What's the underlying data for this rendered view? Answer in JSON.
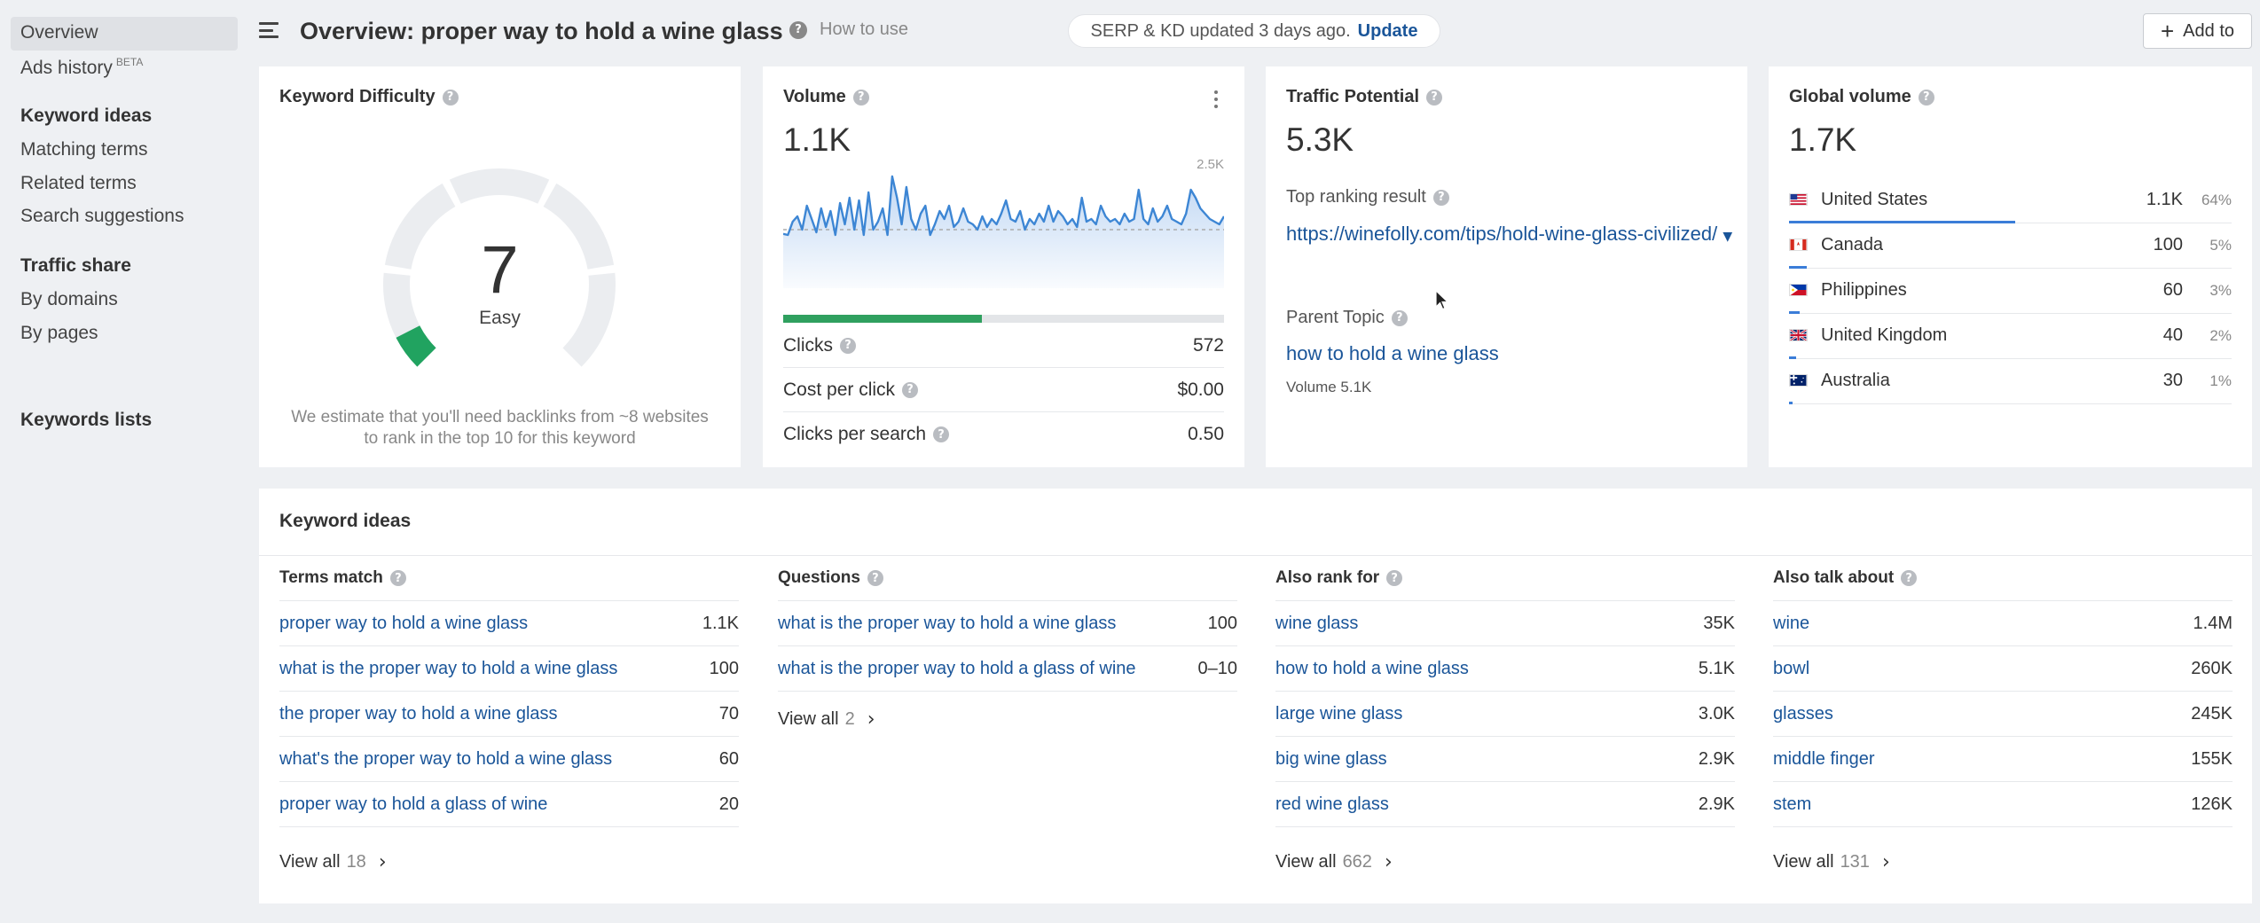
{
  "sidebar": {
    "overview": "Overview",
    "ads_history": "Ads history",
    "ads_badge": "BETA",
    "keyword_ideas_header": "Keyword ideas",
    "matching_terms": "Matching terms",
    "related_terms": "Related terms",
    "search_suggestions": "Search suggestions",
    "traffic_share_header": "Traffic share",
    "by_domains": "By domains",
    "by_pages": "By pages",
    "keywords_lists": "Keywords lists"
  },
  "header": {
    "title": "Overview: proper way to hold a wine glass",
    "how_to_use": "How to use",
    "serp_status": "SERP & KD updated 3 days ago.",
    "update_link": "Update",
    "add_to": "Add to"
  },
  "kd": {
    "title": "Keyword Difficulty",
    "value": "7",
    "label": "Easy",
    "score": 7,
    "fill_color": "#21a360",
    "description": "We estimate that you'll need backlinks from ~8 websites to rank in the top 10 for this keyword"
  },
  "volume": {
    "title": "Volume",
    "value": "1.1K",
    "chart_max_label": "2.5K",
    "clicks_fraction": 0.45,
    "clicks_label": "Clicks",
    "clicks_value": "572",
    "cpc_label": "Cost per click",
    "cpc_value": "$0.00",
    "cps_label": "Clicks per search",
    "cps_value": "0.50"
  },
  "chart_data": {
    "type": "area",
    "title": "",
    "ylim": [
      0,
      2500
    ],
    "series": [
      {
        "values": [
          1020,
          1000,
          1250,
          1350,
          1100,
          1550,
          1300,
          1050,
          1500,
          1150,
          1450,
          1000,
          1600,
          1200,
          1700,
          1100,
          1650,
          1000,
          1800,
          1100,
          1250,
          1500,
          1000,
          2100,
          1700,
          1200,
          1900,
          1300,
          1100,
          1400,
          1550,
          1000,
          1200,
          1450,
          1300,
          1550,
          1150,
          1250,
          1500,
          1250,
          1200,
          1100,
          1350,
          1150,
          1300,
          1200,
          1400,
          1650,
          1300,
          1250,
          1450,
          1100,
          1300,
          1200,
          1400,
          1250,
          1550,
          1250,
          1450,
          1350,
          1200,
          1300,
          1150,
          1700,
          1250,
          1300,
          1200,
          1550,
          1350,
          1250,
          1300,
          1200,
          1400,
          1250,
          1300,
          1850,
          1300,
          1200,
          1500,
          1250,
          1350,
          1550,
          1300,
          1250,
          1200,
          1400,
          1850,
          1700,
          1500,
          1400,
          1300,
          1250,
          1200,
          1350
        ]
      }
    ],
    "average": 1100
  },
  "traffic_potential": {
    "title": "Traffic Potential",
    "value": "5.3K",
    "top_ranking_label": "Top ranking result",
    "top_url": "https://winefolly.com/tips/hold-wine-glass-civilized/",
    "parent_topic_label": "Parent Topic",
    "parent_topic": "how to hold a wine glass",
    "parent_volume": "Volume 5.1K"
  },
  "global_volume": {
    "title": "Global volume",
    "value": "1.7K",
    "countries": [
      {
        "name": "United States",
        "value": "1.1K",
        "pct": "64%",
        "share": 0.64
      },
      {
        "name": "Canada",
        "value": "100",
        "pct": "5%",
        "share": 0.05
      },
      {
        "name": "Philippines",
        "value": "60",
        "pct": "3%",
        "share": 0.03
      },
      {
        "name": "United Kingdom",
        "value": "40",
        "pct": "2%",
        "share": 0.02
      },
      {
        "name": "Australia",
        "value": "30",
        "pct": "1%",
        "share": 0.01
      }
    ]
  },
  "keyword_ideas": {
    "title": "Keyword ideas",
    "view_all": "View all",
    "columns": [
      {
        "title": "Terms match",
        "rows": [
          {
            "kw": "proper way to hold a wine glass",
            "vol": "1.1K"
          },
          {
            "kw": "what is the proper way to hold a wine glass",
            "vol": "100"
          },
          {
            "kw": "the proper way to hold a wine glass",
            "vol": "70"
          },
          {
            "kw": "what's the proper way to hold a wine glass",
            "vol": "60"
          },
          {
            "kw": "proper way to hold a glass of wine",
            "vol": "20"
          }
        ],
        "view_all_count": "18"
      },
      {
        "title": "Questions",
        "rows": [
          {
            "kw": "what is the proper way to hold a wine glass",
            "vol": "100"
          },
          {
            "kw": "what is the proper way to hold a glass of wine",
            "vol": "0–10"
          }
        ],
        "view_all_count": "2"
      },
      {
        "title": "Also rank for",
        "rows": [
          {
            "kw": "wine glass",
            "vol": "35K"
          },
          {
            "kw": "how to hold a wine glass",
            "vol": "5.1K"
          },
          {
            "kw": "large wine glass",
            "vol": "3.0K"
          },
          {
            "kw": "big wine glass",
            "vol": "2.9K"
          },
          {
            "kw": "red wine glass",
            "vol": "2.9K"
          }
        ],
        "view_all_count": "662"
      },
      {
        "title": "Also talk about",
        "rows": [
          {
            "kw": "wine",
            "vol": "1.4M"
          },
          {
            "kw": "bowl",
            "vol": "260K"
          },
          {
            "kw": "glasses",
            "vol": "245K"
          },
          {
            "kw": "middle finger",
            "vol": "155K"
          },
          {
            "kw": "stem",
            "vol": "126K"
          }
        ],
        "view_all_count": "131"
      }
    ]
  },
  "colors": {
    "link": "#1a5599",
    "accent_bar": "#3b7dd8",
    "clicks_bar": "#2fa05f",
    "background": "#eef0f3"
  }
}
